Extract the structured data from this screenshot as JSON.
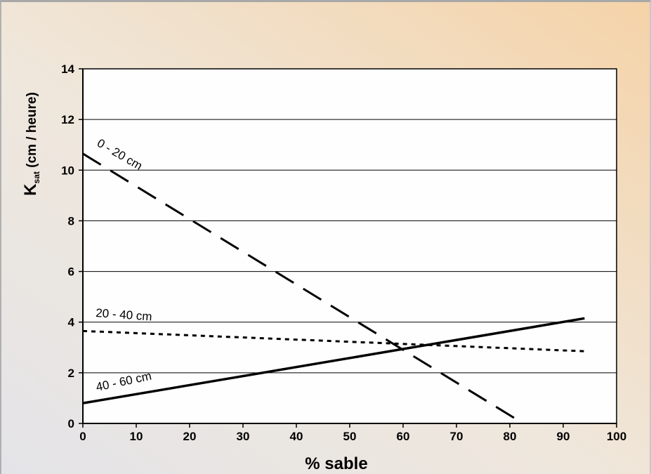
{
  "chart_data": {
    "type": "line",
    "title": "",
    "xlabel": "% sable",
    "ylabel_main": "K",
    "ylabel_sub": "sat",
    "ylabel_rest": " (cm / heure)",
    "xlim": [
      0,
      100
    ],
    "ylim": [
      0,
      14
    ],
    "xticks": [
      0,
      10,
      20,
      30,
      40,
      50,
      60,
      70,
      80,
      90,
      100
    ],
    "yticks": [
      0,
      2,
      4,
      6,
      8,
      10,
      12,
      14
    ],
    "grid": "horizontal",
    "legend": "none",
    "series": [
      {
        "name": "0 - 20 cm",
        "style": "dashed",
        "x": [
          0,
          82.5
        ],
        "y": [
          10.65,
          0
        ]
      },
      {
        "name": "20 - 40 cm",
        "style": "dotted",
        "x": [
          0,
          94
        ],
        "y": [
          3.65,
          2.85
        ]
      },
      {
        "name": "40 - 60 cm",
        "style": "solid",
        "x": [
          0,
          94
        ],
        "y": [
          0.8,
          4.15
        ]
      }
    ]
  }
}
